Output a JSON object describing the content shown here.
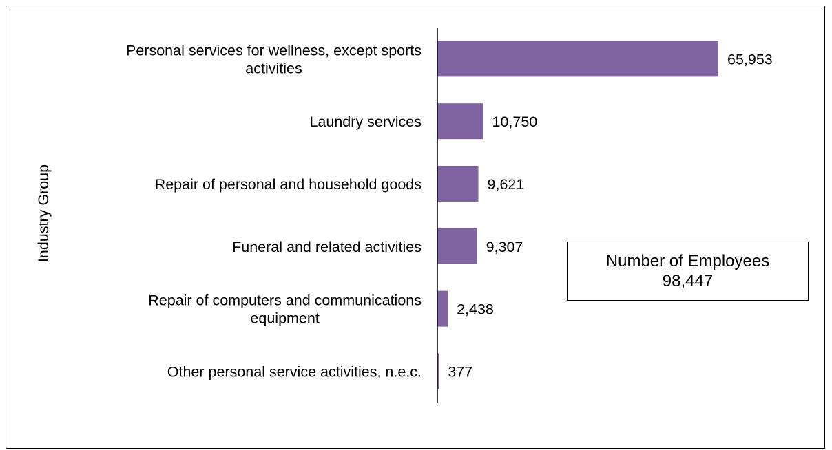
{
  "chart_data": {
    "type": "bar",
    "orientation": "horizontal",
    "title": "",
    "xlabel": "",
    "ylabel": "Industry Group",
    "categories": [
      [
        "Personal services for wellness, except sports",
        "activities"
      ],
      [
        "Laundry services"
      ],
      [
        "Repair of personal and household goods"
      ],
      [
        "Funeral and related activities"
      ],
      [
        "Repair of computers and communications",
        "equipment"
      ],
      [
        "Other personal service activities, n.e.c."
      ]
    ],
    "values": [
      65953,
      10750,
      9621,
      9307,
      2438,
      377
    ],
    "value_labels": [
      "65,953",
      "10,750",
      "9,621",
      "9,307",
      "2,438",
      "377"
    ],
    "bar_color": "#8064A2",
    "grid": false,
    "legend": "none"
  },
  "summary_box": {
    "line1": "Number of Employees",
    "line2": "98,447"
  }
}
